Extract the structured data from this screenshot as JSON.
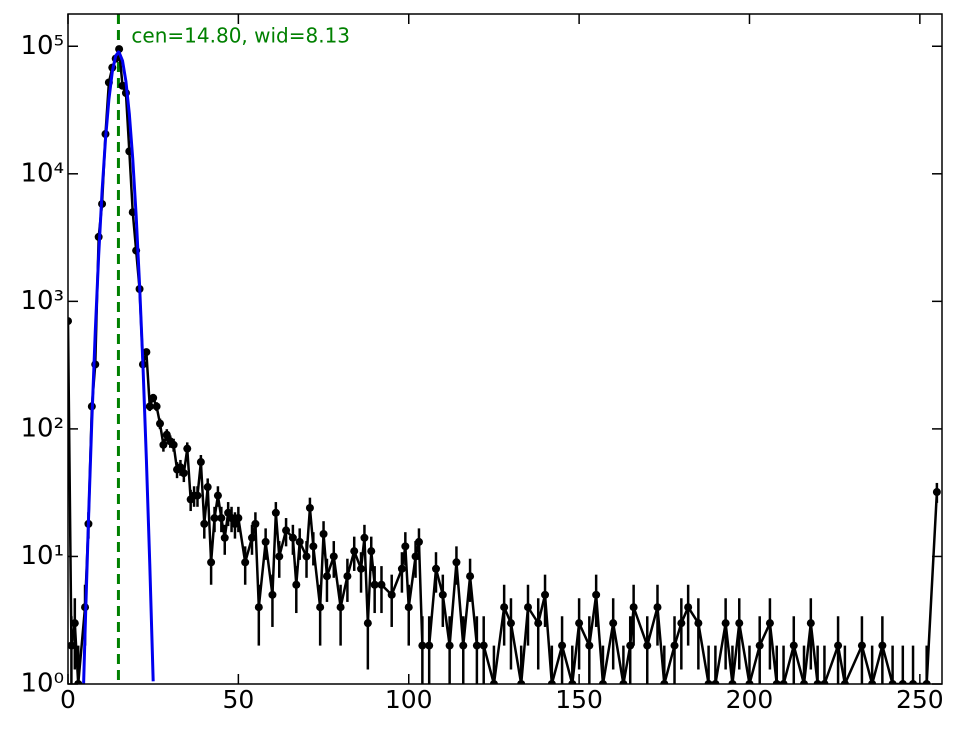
{
  "chart_data": {
    "type": "line",
    "annotation": "cen=14.80, wid=8.13",
    "vline": 14.8,
    "vline_color": "#008000",
    "xlim": [
      0,
      256.5
    ],
    "xticks": [
      0,
      50,
      100,
      150,
      200,
      250
    ],
    "ylim": [
      1,
      179000
    ],
    "log_y": true,
    "yticks": [
      {
        "value": 1,
        "label": "10⁰"
      },
      {
        "value": 10,
        "label": "10¹"
      },
      {
        "value": 100,
        "label": "10²"
      },
      {
        "value": 1000,
        "label": "10³"
      },
      {
        "value": 10000,
        "label": "10⁴"
      },
      {
        "value": 100000,
        "label": "10⁵"
      }
    ],
    "series": [
      {
        "color": "#000000",
        "x": [
          0,
          1,
          2,
          3,
          5,
          6,
          7,
          8,
          9,
          10,
          11,
          12,
          13,
          14,
          15,
          16,
          17,
          18,
          19,
          20,
          21,
          22,
          23,
          24,
          25,
          26,
          27,
          28,
          29,
          30,
          31,
          32,
          33,
          34,
          35,
          36,
          37,
          38,
          39,
          40,
          41,
          42,
          43,
          44,
          45,
          46,
          47,
          48,
          49,
          50,
          52,
          54,
          55,
          56,
          58,
          60,
          61,
          62,
          64,
          66,
          67,
          68,
          70,
          71,
          72,
          74,
          75,
          76,
          78,
          80,
          82,
          84,
          86,
          87,
          88,
          89,
          90,
          92,
          95,
          98,
          99,
          100,
          102,
          103,
          104,
          106,
          108,
          110,
          112,
          114,
          116,
          118,
          120,
          122,
          125,
          128,
          130,
          133,
          135,
          138,
          140,
          142,
          145,
          148,
          150,
          153,
          155,
          157,
          160,
          163,
          165,
          166,
          170,
          173,
          175,
          178,
          180,
          182,
          185,
          188,
          190,
          193,
          195,
          197,
          200,
          203,
          206,
          208,
          210,
          213,
          216,
          218,
          220,
          222,
          226,
          228,
          233,
          236,
          239,
          242,
          245,
          248,
          252,
          255
        ],
        "values": [
          700,
          2,
          3,
          1,
          4,
          18,
          150,
          320,
          3200,
          5800,
          20500,
          52000,
          68000,
          80000,
          95000,
          49000,
          43000,
          15000,
          5000,
          2500,
          1250,
          320,
          400,
          150,
          175,
          150,
          110,
          75,
          90,
          80,
          75,
          48,
          50,
          45,
          70,
          28,
          30,
          30,
          55,
          18,
          35,
          9,
          20,
          30,
          20,
          14,
          22,
          20,
          18,
          20,
          9,
          14,
          18,
          4,
          13,
          5,
          22,
          10,
          16,
          14,
          6,
          13,
          10,
          24,
          12,
          4,
          15,
          7,
          10,
          4,
          7,
          11,
          8,
          14,
          3,
          11,
          6,
          6,
          5,
          8,
          12,
          4,
          10,
          13,
          2,
          2,
          8,
          5,
          2,
          9,
          2,
          7,
          2,
          2,
          1,
          4,
          3,
          1,
          4,
          3,
          5,
          1,
          2,
          1,
          3,
          2,
          5,
          1,
          3,
          1,
          2,
          4,
          2,
          4,
          1,
          2,
          3,
          4,
          3,
          1,
          1,
          3,
          1,
          3,
          1,
          2,
          3,
          1,
          1,
          2,
          1,
          3,
          1,
          1,
          2,
          1,
          2,
          1,
          2,
          1,
          1,
          1,
          1,
          32
        ],
        "errors": [
          26,
          1.4,
          1.7,
          1,
          2,
          4.2,
          12,
          18,
          57,
          76,
          143,
          228,
          261,
          283,
          308,
          221,
          207,
          122,
          71,
          50,
          35,
          18,
          20,
          12,
          13,
          12,
          10.5,
          8.7,
          9.5,
          8.9,
          8.7,
          6.9,
          7.1,
          6.7,
          8.4,
          5.3,
          5.5,
          5.5,
          7.4,
          4.2,
          5.9,
          3,
          4.5,
          5.5,
          4.5,
          3.7,
          4.7,
          4.5,
          4.2,
          4.5,
          3,
          3.7,
          4.2,
          2,
          3.6,
          2.2,
          4.7,
          3.2,
          4,
          3.7,
          2.4,
          3.6,
          3.2,
          4.9,
          3.5,
          2,
          3.9,
          2.6,
          3.2,
          2,
          2.6,
          3.3,
          2.8,
          3.7,
          1.7,
          3.3,
          2.4,
          2.4,
          2.2,
          2.8,
          3.5,
          2,
          3.2,
          3.6,
          1.4,
          1.4,
          2.8,
          2.2,
          1.4,
          3,
          1.4,
          2.6,
          1.4,
          1.4,
          1,
          2,
          1.7,
          1,
          2,
          1.7,
          2.2,
          1,
          1.4,
          1,
          1.7,
          1.4,
          2.2,
          1,
          1.7,
          1,
          1.4,
          2,
          1.4,
          2,
          1,
          1.4,
          1.7,
          2,
          1.7,
          1,
          1,
          1.7,
          1,
          1.7,
          1,
          1.4,
          1.7,
          1,
          1,
          1.4,
          1,
          1.7,
          1,
          1,
          1.4,
          1,
          1.4,
          1,
          1.4,
          1,
          1,
          1,
          1,
          5.7
        ]
      },
      {
        "color": "#0000ee",
        "x": [
          4.5,
          5,
          6,
          7,
          8,
          9,
          10,
          11,
          12,
          13,
          14,
          14.8,
          15,
          16,
          17,
          18,
          19,
          20,
          21,
          22,
          23,
          24,
          25
        ],
        "values": [
          0.84,
          2.5,
          19,
          117,
          576,
          2290,
          7280,
          18600,
          38200,
          63200,
          84000,
          90000,
          89600,
          76900,
          53000,
          29400,
          13100,
          4700,
          1350,
          314,
          58,
          8.7,
          1.05
        ]
      }
    ]
  }
}
